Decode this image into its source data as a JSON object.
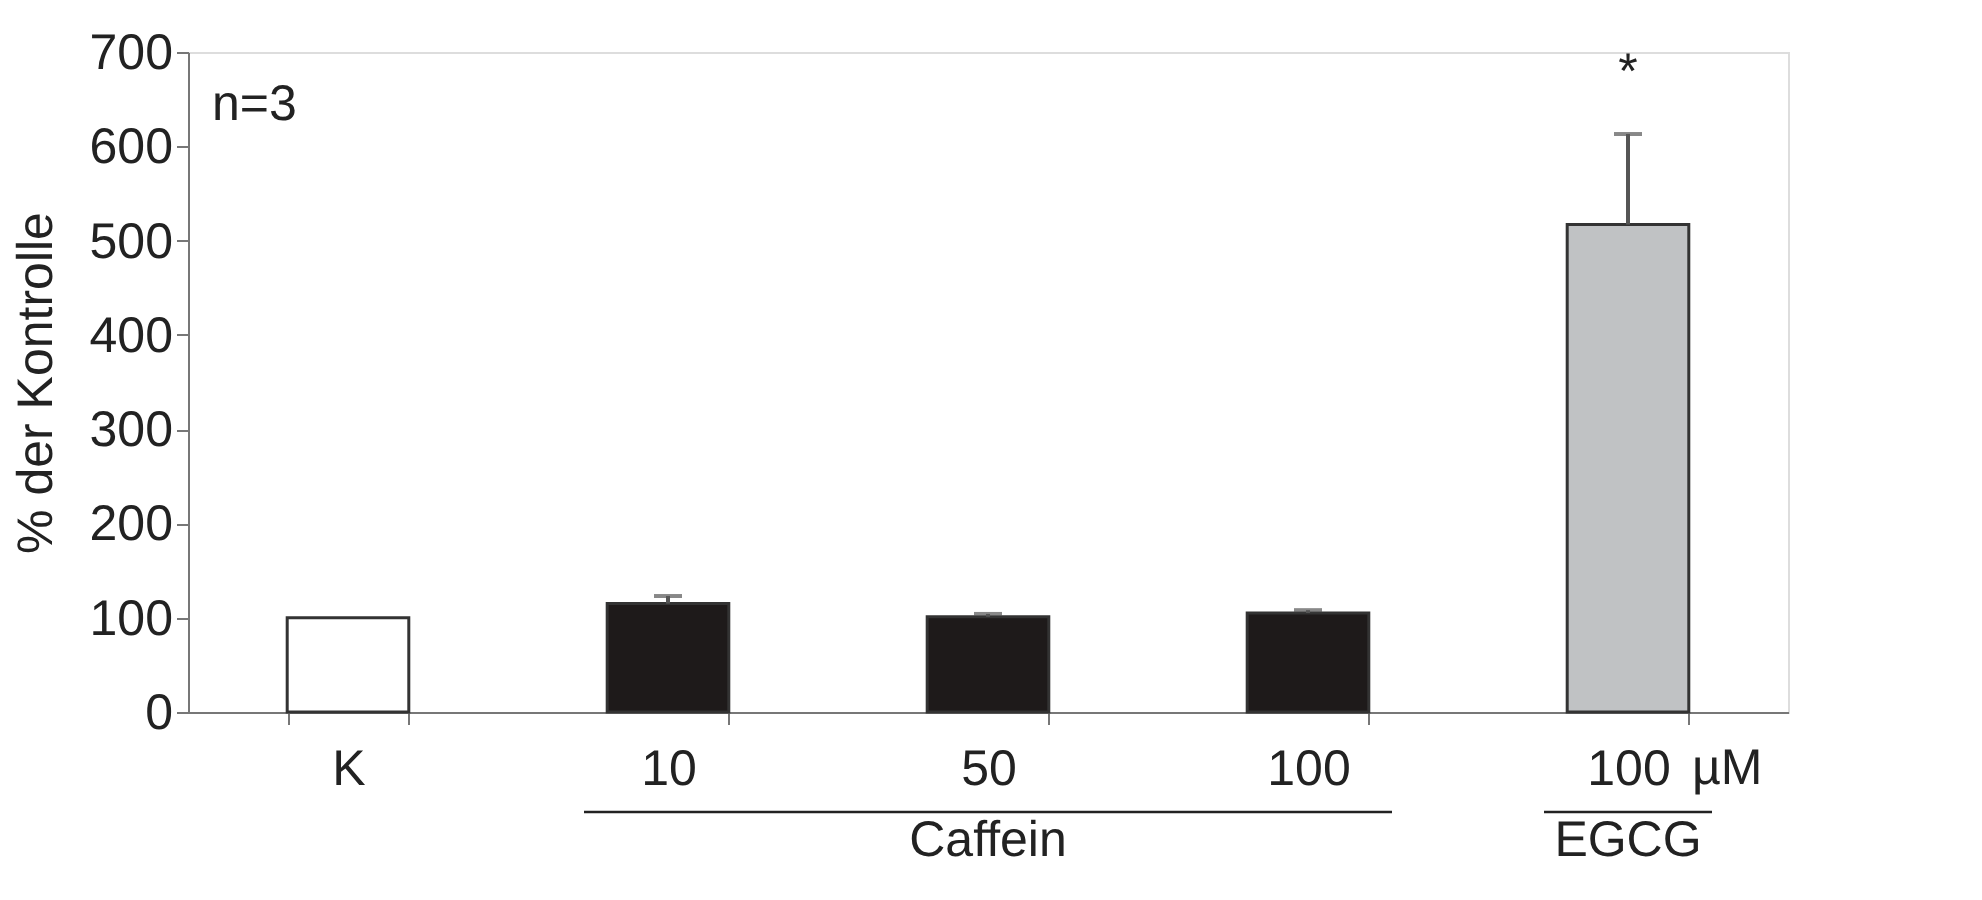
{
  "chart_data": {
    "type": "bar",
    "ylabel": "% der Kontrolle",
    "categories": [
      "K",
      "10",
      "50",
      "100",
      "100"
    ],
    "values": [
      100,
      115,
      101,
      105,
      517
    ],
    "colors": [
      "#ffffff",
      "#1e1a1a",
      "#1e1a1a",
      "#1e1a1a",
      "#c0c2c4"
    ],
    "errors": [
      null,
      [
        115,
        123
      ],
      [
        101,
        104
      ],
      [
        105,
        108
      ],
      [
        517,
        613
      ]
    ],
    "ylim": [
      0,
      700
    ],
    "yticks": [
      0,
      100,
      200,
      300,
      400,
      500,
      600,
      700
    ],
    "grid": false,
    "annotations": [
      "n=3",
      "*",
      "µM",
      "Caffein",
      "EGCG"
    ]
  }
}
